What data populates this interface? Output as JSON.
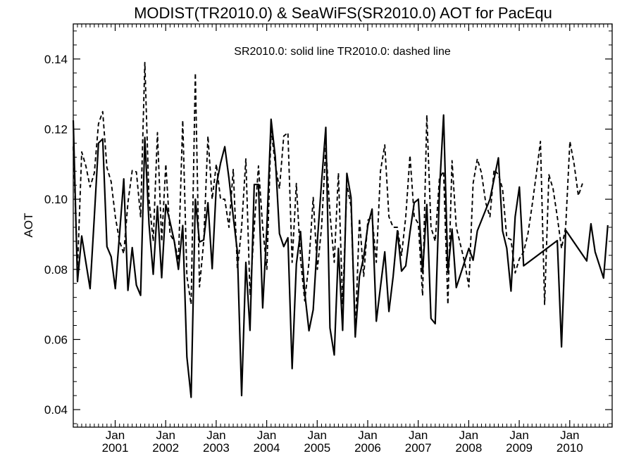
{
  "chart_data": {
    "type": "line",
    "title": "MODIST(TR2010.0) & SeaWiFS(SR2010.0)  AOT for PacEqu",
    "ylabel": "AOT",
    "xlabel": "",
    "annotation": "SR2010.0: solid line   TR2010.0: dashed line",
    "xlim": [
      2000.0,
      2010.67
    ],
    "ylim": [
      0.035,
      0.15
    ],
    "grid": false,
    "yticks": [
      {
        "value": 0.04,
        "label": "0.04"
      },
      {
        "value": 0.06,
        "label": "0.06"
      },
      {
        "value": 0.08,
        "label": "0.08"
      },
      {
        "value": 0.1,
        "label": "0.10"
      },
      {
        "value": 0.12,
        "label": "0.12"
      },
      {
        "value": 0.14,
        "label": "0.14"
      }
    ],
    "xticks": [
      {
        "value": 2000.83,
        "month": "Jan",
        "year": "2001"
      },
      {
        "value": 2001.83,
        "month": "Jan",
        "year": "2002"
      },
      {
        "value": 2002.83,
        "month": "Jan",
        "year": "2003"
      },
      {
        "value": 2003.83,
        "month": "Jan",
        "year": "2004"
      },
      {
        "value": 2004.83,
        "month": "Jan",
        "year": "2005"
      },
      {
        "value": 2005.83,
        "month": "Jan",
        "year": "2006"
      },
      {
        "value": 2006.83,
        "month": "Jan",
        "year": "2007"
      },
      {
        "value": 2007.83,
        "month": "Jan",
        "year": "2008"
      },
      {
        "value": 2008.83,
        "month": "Jan",
        "year": "2009"
      },
      {
        "value": 2009.83,
        "month": "Jan",
        "year": "2010"
      }
    ],
    "series": [
      {
        "name": "SR2010.0",
        "style": "solid",
        "color": "#000000",
        "points": [
          [
            2000.0,
            0.1225
          ],
          [
            2000.083,
            0.0765
          ],
          [
            2000.167,
            0.0895
          ],
          [
            2000.25,
            0.082
          ],
          [
            2000.333,
            0.0745
          ],
          [
            2000.417,
            0.095
          ],
          [
            2000.5,
            0.116
          ],
          [
            2000.583,
            0.1172
          ],
          [
            2000.667,
            0.0865
          ],
          [
            2000.75,
            0.0836
          ],
          [
            2000.833,
            0.0745
          ],
          [
            2000.917,
            0.09
          ],
          [
            2001.0,
            0.1058
          ],
          [
            2001.083,
            0.074
          ],
          [
            2001.167,
            0.0862
          ],
          [
            2001.25,
            0.0755
          ],
          [
            2001.333,
            0.0726
          ],
          [
            2001.417,
            0.1176
          ],
          [
            2001.5,
            0.093
          ],
          [
            2001.583,
            0.0786
          ],
          [
            2001.667,
            0.098
          ],
          [
            2001.75,
            0.0776
          ],
          [
            2001.833,
            0.0985
          ],
          [
            2001.917,
            0.0935
          ],
          [
            2002.0,
            0.088
          ],
          [
            2002.083,
            0.08
          ],
          [
            2002.167,
            0.0925
          ],
          [
            2002.25,
            0.055
          ],
          [
            2002.333,
            0.0435
          ],
          [
            2002.417,
            0.1
          ],
          [
            2002.5,
            0.0878
          ],
          [
            2002.583,
            0.0884
          ],
          [
            2002.667,
            0.099
          ],
          [
            2002.75,
            0.0802
          ],
          [
            2002.833,
            0.104
          ],
          [
            2002.917,
            0.1103
          ],
          [
            2003.0,
            0.115
          ],
          [
            2003.083,
            0.106
          ],
          [
            2003.167,
            0.095
          ],
          [
            2003.25,
            0.085
          ],
          [
            2003.333,
            0.044
          ],
          [
            2003.417,
            0.082
          ],
          [
            2003.5,
            0.0626
          ],
          [
            2003.583,
            0.1042
          ],
          [
            2003.667,
            0.1042
          ],
          [
            2003.75,
            0.069
          ],
          [
            2003.833,
            0.092
          ],
          [
            2003.917,
            0.1228
          ],
          [
            2004.0,
            0.112
          ],
          [
            2004.083,
            0.0902
          ],
          [
            2004.167,
            0.0865
          ],
          [
            2004.25,
            0.089
          ],
          [
            2004.333,
            0.0517
          ],
          [
            2004.417,
            0.0815
          ],
          [
            2004.5,
            0.0908
          ],
          [
            2004.583,
            0.0733
          ],
          [
            2004.667,
            0.0625
          ],
          [
            2004.75,
            0.0685
          ],
          [
            2004.833,
            0.088
          ],
          [
            2004.917,
            0.105
          ],
          [
            2005.0,
            0.1205
          ],
          [
            2005.083,
            0.0633
          ],
          [
            2005.167,
            0.0556
          ],
          [
            2005.25,
            0.086
          ],
          [
            2005.333,
            0.0626
          ],
          [
            2005.417,
            0.1074
          ],
          [
            2005.5,
            0.1005
          ],
          [
            2005.583,
            0.0607
          ],
          [
            2005.667,
            0.078
          ],
          [
            2005.75,
            0.0835
          ],
          [
            2005.833,
            0.0925
          ],
          [
            2005.917,
            0.0972
          ],
          [
            2006.0,
            0.0652
          ],
          [
            2006.083,
            0.075
          ],
          [
            2006.167,
            0.085
          ],
          [
            2006.25,
            0.068
          ],
          [
            2006.333,
            0.078
          ],
          [
            2006.417,
            0.091
          ],
          [
            2006.5,
            0.0795
          ],
          [
            2006.583,
            0.081
          ],
          [
            2006.667,
            0.0906
          ],
          [
            2006.75,
            0.099
          ],
          [
            2006.833,
            0.1
          ],
          [
            2006.917,
            0.079
          ],
          [
            2007.0,
            0.0985
          ],
          [
            2007.083,
            0.066
          ],
          [
            2007.167,
            0.0645
          ],
          [
            2007.25,
            0.1022
          ],
          [
            2007.333,
            0.124
          ],
          [
            2007.417,
            0.0792
          ],
          [
            2007.5,
            0.0915
          ],
          [
            2007.583,
            0.0748
          ],
          [
            2007.833,
            0.086
          ],
          [
            2007.917,
            0.0826
          ],
          [
            2008.0,
            0.091
          ],
          [
            2008.25,
            0.1
          ],
          [
            2008.417,
            0.1118
          ],
          [
            2008.5,
            0.091
          ],
          [
            2008.583,
            0.086
          ],
          [
            2008.667,
            0.0738
          ],
          [
            2008.75,
            0.095
          ],
          [
            2008.833,
            0.1035
          ],
          [
            2008.917,
            0.081
          ],
          [
            2009.583,
            0.0882
          ],
          [
            2009.667,
            0.0579
          ],
          [
            2009.75,
            0.0912
          ],
          [
            2010.167,
            0.0824
          ],
          [
            2010.25,
            0.093
          ],
          [
            2010.333,
            0.085
          ],
          [
            2010.5,
            0.0775
          ],
          [
            2010.583,
            0.0926
          ]
        ]
      },
      {
        "name": "TR2010.0",
        "style": "dashed",
        "color": "#000000",
        "points": [
          [
            2000.0,
            0.115
          ],
          [
            2000.083,
            0.08
          ],
          [
            2000.167,
            0.1135
          ],
          [
            2000.25,
            0.1095
          ],
          [
            2000.333,
            0.1035
          ],
          [
            2000.417,
            0.1075
          ],
          [
            2000.5,
            0.1215
          ],
          [
            2000.583,
            0.125
          ],
          [
            2000.667,
            0.109
          ],
          [
            2000.75,
            0.105
          ],
          [
            2000.833,
            0.095
          ],
          [
            2000.917,
            0.088
          ],
          [
            2001.0,
            0.0845
          ],
          [
            2001.083,
            0.099
          ],
          [
            2001.167,
            0.1082
          ],
          [
            2001.25,
            0.1078
          ],
          [
            2001.333,
            0.095
          ],
          [
            2001.417,
            0.139
          ],
          [
            2001.5,
            0.1
          ],
          [
            2001.583,
            0.088
          ],
          [
            2001.667,
            0.119
          ],
          [
            2001.75,
            0.088
          ],
          [
            2001.833,
            0.11
          ],
          [
            2001.917,
            0.09
          ],
          [
            2002.0,
            0.088
          ],
          [
            2002.083,
            0.0825
          ],
          [
            2002.167,
            0.1225
          ],
          [
            2002.25,
            0.078
          ],
          [
            2002.333,
            0.07
          ],
          [
            2002.417,
            0.136
          ],
          [
            2002.5,
            0.075
          ],
          [
            2002.583,
            0.088
          ],
          [
            2002.667,
            0.118
          ],
          [
            2002.75,
            0.1
          ],
          [
            2002.833,
            0.11
          ],
          [
            2002.917,
            0.1
          ],
          [
            2003.0,
            0.1
          ],
          [
            2003.083,
            0.092
          ],
          [
            2003.167,
            0.1085
          ],
          [
            2003.25,
            0.08
          ],
          [
            2003.333,
            0.092
          ],
          [
            2003.417,
            0.1115
          ],
          [
            2003.5,
            0.0726
          ],
          [
            2003.583,
            0.092
          ],
          [
            2003.667,
            0.1095
          ],
          [
            2003.75,
            0.092
          ],
          [
            2003.833,
            0.08
          ],
          [
            2003.917,
            0.12
          ],
          [
            2004.0,
            0.11
          ],
          [
            2004.083,
            0.103
          ],
          [
            2004.167,
            0.118
          ],
          [
            2004.25,
            0.119
          ],
          [
            2004.333,
            0.082
          ],
          [
            2004.417,
            0.1045
          ],
          [
            2004.5,
            0.083
          ],
          [
            2004.583,
            0.071
          ],
          [
            2004.667,
            0.082
          ],
          [
            2004.75,
            0.1005
          ],
          [
            2004.833,
            0.08
          ],
          [
            2004.917,
            0.092
          ],
          [
            2005.0,
            0.115
          ],
          [
            2005.083,
            0.096
          ],
          [
            2005.167,
            0.082
          ],
          [
            2005.25,
            0.1075
          ],
          [
            2005.333,
            0.07
          ],
          [
            2005.417,
            0.104
          ],
          [
            2005.5,
            0.098
          ],
          [
            2005.583,
            0.062
          ],
          [
            2005.667,
            0.0945
          ],
          [
            2005.75,
            0.078
          ],
          [
            2005.833,
            0.094
          ],
          [
            2005.917,
            0.095
          ],
          [
            2006.0,
            0.082
          ],
          [
            2006.083,
            0.108
          ],
          [
            2006.167,
            0.1155
          ],
          [
            2006.25,
            0.095
          ],
          [
            2006.333,
            0.092
          ],
          [
            2006.417,
            0.092
          ],
          [
            2006.5,
            0.084
          ],
          [
            2006.583,
            0.095
          ],
          [
            2006.667,
            0.1125
          ],
          [
            2006.75,
            0.095
          ],
          [
            2006.833,
            0.093
          ],
          [
            2006.917,
            0.0725
          ],
          [
            2007.0,
            0.124
          ],
          [
            2007.083,
            0.092
          ],
          [
            2007.167,
            0.088
          ],
          [
            2007.25,
            0.106
          ],
          [
            2007.333,
            0.108
          ],
          [
            2007.417,
            0.07
          ],
          [
            2007.5,
            0.111
          ],
          [
            2007.583,
            0.092
          ],
          [
            2007.667,
            0.087
          ],
          [
            2007.75,
            0.082
          ],
          [
            2007.833,
            0.075
          ],
          [
            2007.917,
            0.1045
          ],
          [
            2008.0,
            0.1115
          ],
          [
            2008.083,
            0.1075
          ],
          [
            2008.167,
            0.099
          ],
          [
            2008.25,
            0.095
          ],
          [
            2008.333,
            0.1085
          ],
          [
            2008.417,
            0.107
          ],
          [
            2008.5,
            0.103
          ],
          [
            2008.583,
            0.089
          ],
          [
            2008.667,
            0.0885
          ],
          [
            2008.75,
            0.079
          ],
          [
            2008.833,
            0.083
          ],
          [
            2008.917,
            0.085
          ],
          [
            2009.0,
            0.09
          ],
          [
            2009.083,
            0.098
          ],
          [
            2009.167,
            0.107
          ],
          [
            2009.25,
            0.1165
          ],
          [
            2009.333,
            0.07
          ],
          [
            2009.417,
            0.107
          ],
          [
            2009.5,
            0.103
          ],
          [
            2009.583,
            0.095
          ],
          [
            2009.667,
            0.086
          ],
          [
            2009.75,
            0.092
          ],
          [
            2009.833,
            0.1165
          ],
          [
            2009.917,
            0.11
          ],
          [
            2010.0,
            0.101
          ],
          [
            2010.083,
            0.1045
          ]
        ]
      }
    ]
  }
}
